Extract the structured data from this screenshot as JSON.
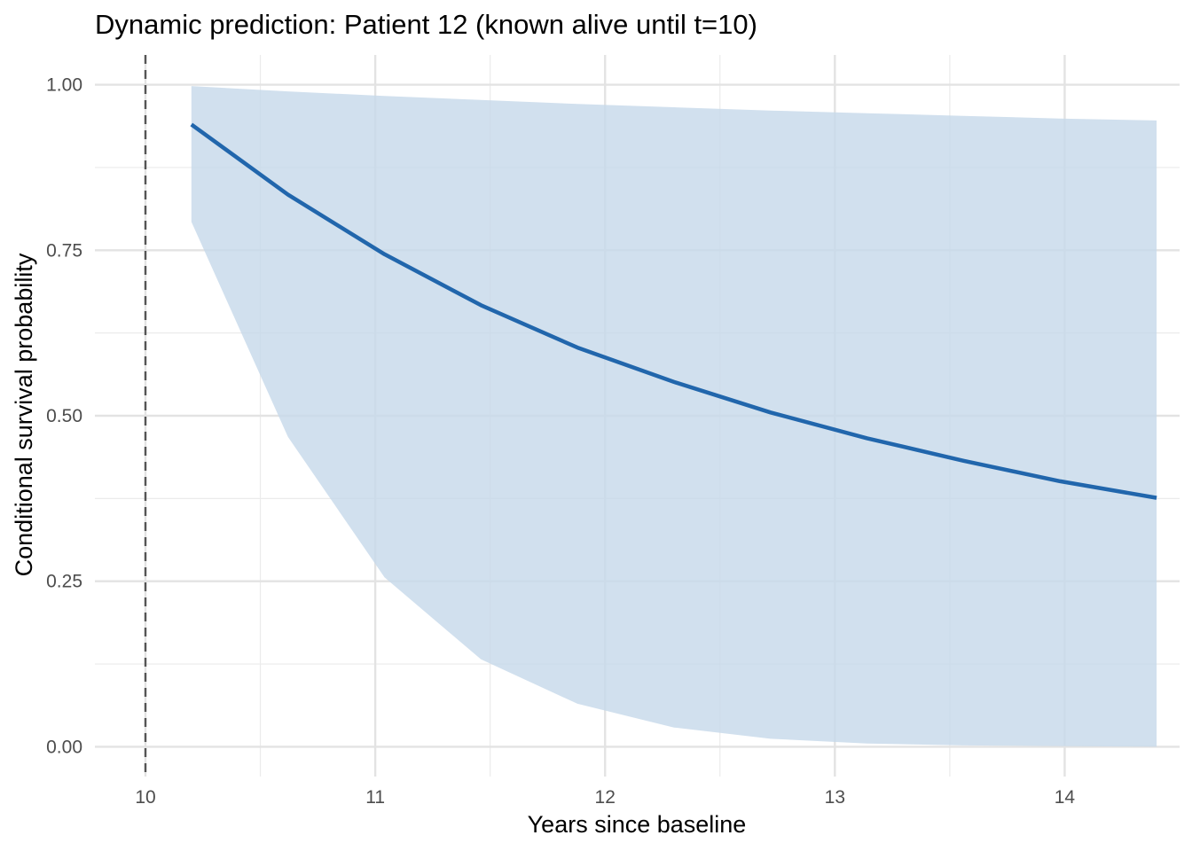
{
  "chart_data": {
    "type": "line",
    "title": "Dynamic prediction: Patient 12 (known alive until t=10)",
    "xlabel": "Years since baseline",
    "ylabel": "Conditional survival probability",
    "xlim": [
      9.78,
      14.5
    ],
    "ylim": [
      -0.045,
      1.045
    ],
    "x_ticks": [
      10,
      11,
      12,
      13,
      14
    ],
    "x_tick_labels": [
      "10",
      "11",
      "12",
      "13",
      "14"
    ],
    "y_ticks": [
      0,
      0.25,
      0.5,
      0.75,
      1.0
    ],
    "y_tick_labels": [
      "0.00",
      "0.25",
      "0.50",
      "0.75",
      "1.00"
    ],
    "grid": true,
    "reference_line": {
      "x": 10,
      "style": "dashed",
      "color": "#555555"
    },
    "series": [
      {
        "x": [
          10.2,
          10.62,
          11.04,
          11.46,
          11.88,
          12.3,
          12.72,
          13.14,
          13.56,
          13.98,
          14.4
        ],
        "values": [
          0.94,
          0.834,
          0.744,
          0.667,
          0.603,
          0.551,
          0.505,
          0.466,
          0.432,
          0.401,
          0.376
        ],
        "lower": [
          0.793,
          0.468,
          0.256,
          0.132,
          0.065,
          0.029,
          0.012,
          0.005,
          0.002,
          0.001,
          0.0
        ],
        "upper": [
          0.998,
          0.99,
          0.983,
          0.977,
          0.971,
          0.966,
          0.961,
          0.957,
          0.953,
          0.949,
          0.946
        ],
        "color": "#2166ac",
        "band_color": "#c6d8ea"
      }
    ]
  }
}
